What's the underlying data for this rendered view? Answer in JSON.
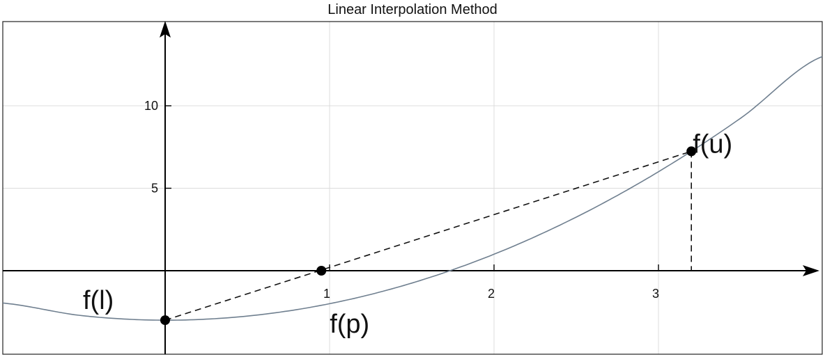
{
  "chart_data": {
    "type": "line",
    "title": "Linear Interpolation Method",
    "xlabel": "",
    "ylabel": "",
    "xlim": [
      -1.0,
      4.0
    ],
    "ylim": [
      -5.0,
      16.0
    ],
    "grid": true,
    "x_ticks": [
      1,
      2,
      3
    ],
    "x_tick_labels": [
      "1",
      "2",
      "3"
    ],
    "y_ticks": [
      5,
      10
    ],
    "y_tick_labels": [
      "5",
      "10"
    ],
    "series": [
      {
        "values_description": "",
        "x": [
          -1.0,
          -0.5,
          0.0,
          0.5,
          1.0,
          1.5,
          2.0,
          2.5,
          3.0,
          3.5,
          4.0
        ],
        "y": [
          -1.95,
          -2.73,
          -3.0,
          -2.75,
          -2.0,
          -0.75,
          1.0,
          3.25,
          6.0,
          9.25,
          13.0
        ]
      }
    ],
    "points": [
      {
        "label": "f(l)",
        "x": 0.0,
        "y": -3.0
      },
      {
        "label": "f(p)",
        "x": 0.95,
        "y": 0.0
      },
      {
        "label": "f(u)",
        "x": 3.2,
        "y": 7.24
      }
    ],
    "secant": {
      "from": [
        0.0,
        -3.0
      ],
      "to": [
        3.2,
        7.24
      ]
    },
    "drop_line": {
      "from": [
        3.2,
        7.24
      ],
      "to": [
        3.2,
        0.0
      ]
    }
  }
}
